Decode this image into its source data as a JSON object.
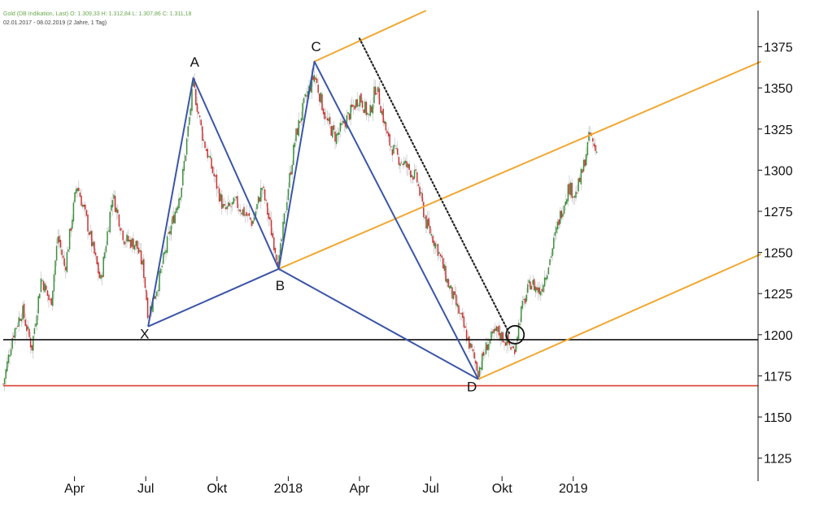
{
  "header": {
    "instrument_line": "Gold (DB Indikation, Last)  O: 1.309,33  H: 1.312,84  L: 1.307,86  C: 1.311,18",
    "range_line": "02.01.2017 - 08.02.2019  (2 Jahre, 1 Tag)"
  },
  "colors": {
    "up_candle": "#3d8f3d",
    "down_candle": "#cc3333",
    "pattern_line": "#3b55a8",
    "channel_line": "#f0a832",
    "support_line": "#111111",
    "red_line": "#d9402b",
    "dotted_trend": "#222222"
  },
  "chart_data": {
    "type": "line",
    "title": "",
    "xlabel": "",
    "ylabel": "",
    "ylim": [
      1111,
      1397
    ],
    "grid": false,
    "y_axis_position": "right",
    "y_ticks": [
      1125,
      1150,
      1175,
      1200,
      1225,
      1250,
      1275,
      1300,
      1325,
      1350,
      1375
    ],
    "x_ticks": [
      {
        "label": "Apr",
        "t": 3
      },
      {
        "label": "Jul",
        "t": 6
      },
      {
        "label": "Okt",
        "t": 9
      },
      {
        "label": "2018",
        "t": 12
      },
      {
        "label": "Apr",
        "t": 15
      },
      {
        "label": "Jul",
        "t": 18
      },
      {
        "label": "Okt",
        "t": 21
      },
      {
        "label": "2019",
        "t": 24
      }
    ],
    "price_anchors": [
      [
        0.0,
        1170
      ],
      [
        0.4,
        1200
      ],
      [
        0.8,
        1215
      ],
      [
        1.2,
        1192
      ],
      [
        1.6,
        1235
      ],
      [
        2.0,
        1218
      ],
      [
        2.3,
        1260
      ],
      [
        2.6,
        1240
      ],
      [
        3.1,
        1292
      ],
      [
        3.5,
        1270
      ],
      [
        4.1,
        1232
      ],
      [
        4.6,
        1285
      ],
      [
        5.1,
        1258
      ],
      [
        5.6,
        1255
      ],
      [
        5.9,
        1240
      ],
      [
        6.1,
        1212
      ],
      [
        6.5,
        1230
      ],
      [
        7.0,
        1262
      ],
      [
        7.5,
        1290
      ],
      [
        8.0,
        1352
      ],
      [
        8.4,
        1320
      ],
      [
        8.8,
        1300
      ],
      [
        9.3,
        1275
      ],
      [
        9.8,
        1280
      ],
      [
        10.5,
        1268
      ],
      [
        10.9,
        1290
      ],
      [
        11.3,
        1262
      ],
      [
        11.6,
        1243
      ],
      [
        12.0,
        1290
      ],
      [
        12.3,
        1320
      ],
      [
        12.7,
        1342
      ],
      [
        13.1,
        1358
      ],
      [
        13.6,
        1330
      ],
      [
        14.0,
        1320
      ],
      [
        14.5,
        1332
      ],
      [
        15.0,
        1345
      ],
      [
        15.4,
        1332
      ],
      [
        15.7,
        1352
      ],
      [
        16.2,
        1318
      ],
      [
        16.6,
        1308
      ],
      [
        17.0,
        1302
      ],
      [
        17.4,
        1295
      ],
      [
        17.8,
        1268
      ],
      [
        18.3,
        1252
      ],
      [
        18.7,
        1232
      ],
      [
        19.2,
        1213
      ],
      [
        19.6,
        1195
      ],
      [
        20.0,
        1178
      ],
      [
        20.4,
        1195
      ],
      [
        20.8,
        1202
      ],
      [
        21.2,
        1196
      ],
      [
        21.5,
        1190
      ],
      [
        21.8,
        1214
      ],
      [
        22.2,
        1232
      ],
      [
        22.6,
        1226
      ],
      [
        23.0,
        1245
      ],
      [
        23.4,
        1270
      ],
      [
        23.8,
        1290
      ],
      [
        24.1,
        1285
      ],
      [
        24.4,
        1300
      ],
      [
        24.7,
        1322
      ],
      [
        24.9,
        1313
      ],
      [
        25.0,
        1311
      ]
    ],
    "pattern": {
      "points": [
        {
          "label": "X",
          "t": 6.1,
          "y": 1205
        },
        {
          "label": "A",
          "t": 8.0,
          "y": 1356
        },
        {
          "label": "B",
          "t": 11.6,
          "y": 1240
        },
        {
          "label": "C",
          "t": 13.1,
          "y": 1366
        },
        {
          "label": "D",
          "t": 20.0,
          "y": 1173
        }
      ],
      "extra_segments": [
        [
          "X",
          "B"
        ],
        [
          "B",
          "D"
        ]
      ]
    },
    "channel_lines": [
      {
        "from": {
          "t": 13.1,
          "y": 1366
        },
        "to": {
          "t": 17.8,
          "y": 1397
        }
      },
      {
        "from": {
          "t": 11.6,
          "y": 1240
        },
        "to": {
          "t": 31.9,
          "y": 1366
        }
      },
      {
        "from": {
          "t": 20.0,
          "y": 1173
        },
        "to": {
          "t": 31.9,
          "y": 1249
        }
      }
    ],
    "dotted_trendline": {
      "from": {
        "t": 15.0,
        "y": 1380
      },
      "to": {
        "t": 21.3,
        "y": 1201
      }
    },
    "horizontal_lines": [
      {
        "y": 1197,
        "kind": "support"
      },
      {
        "y": 1169,
        "kind": "red"
      }
    ],
    "circle_marker": {
      "t": 21.55,
      "y": 1200
    }
  }
}
